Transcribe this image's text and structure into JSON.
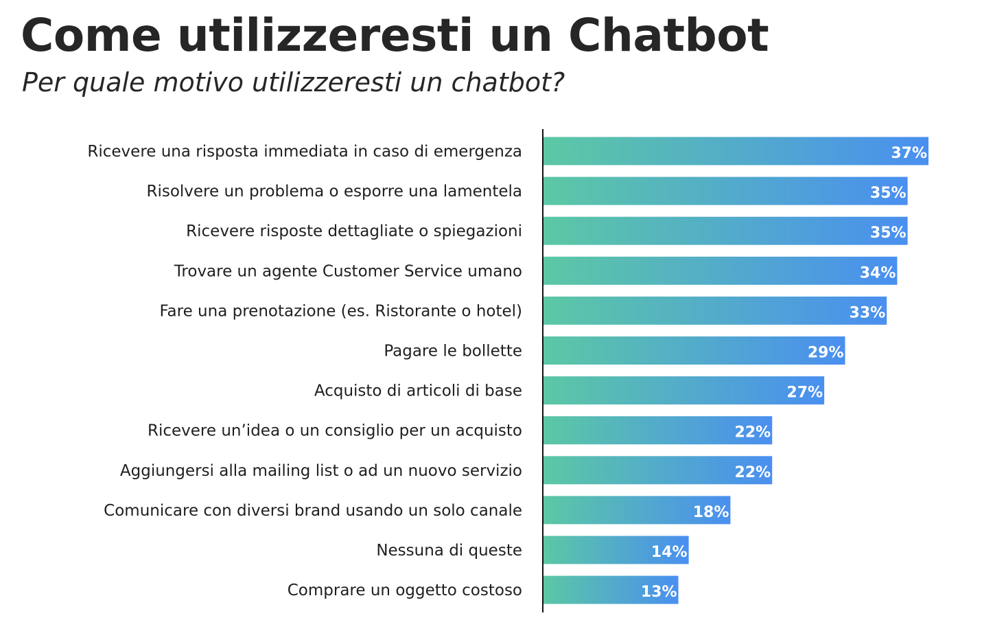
{
  "header": {
    "title": "Come utilizzeresti un Chatbot",
    "subtitle": "Per quale motivo utilizzeresti un chatbot?"
  },
  "colors": {
    "bar_start": "#5cc8a4",
    "bar_end": "#4a8ff0",
    "axis": "#111111"
  },
  "chart_data": {
    "type": "bar",
    "orientation": "horizontal",
    "title": "Come utilizzeresti un Chatbot",
    "subtitle": "Per quale motivo utilizzeresti un chatbot?",
    "xlabel": "",
    "ylabel": "",
    "unit": "%",
    "xlim": [
      0,
      37
    ],
    "grid": false,
    "categories": [
      "Ricevere una risposta immediata in caso di emergenza",
      "Risolvere un problema o esporre una lamentela",
      "Ricevere risposte dettagliate o spiegazioni",
      "Trovare un agente Customer Service umano",
      "Fare una prenotazione (es. Ristorante o hotel)",
      "Pagare le bollette",
      "Acquisto di articoli di base",
      "Ricevere un’idea o un consiglio per un acquisto",
      "Aggiungersi alla mailing list o ad un nuovo servizio",
      "Comunicare con diversi brand usando un solo canale",
      "Nessuna di queste",
      "Comprare un oggetto costoso"
    ],
    "values": [
      37,
      35,
      35,
      34,
      33,
      29,
      27,
      22,
      22,
      18,
      14,
      13
    ],
    "value_labels": [
      "37%",
      "35%",
      "35%",
      "34%",
      "33%",
      "29%",
      "27%",
      "22%",
      "22%",
      "18%",
      "14%",
      "13%"
    ]
  }
}
